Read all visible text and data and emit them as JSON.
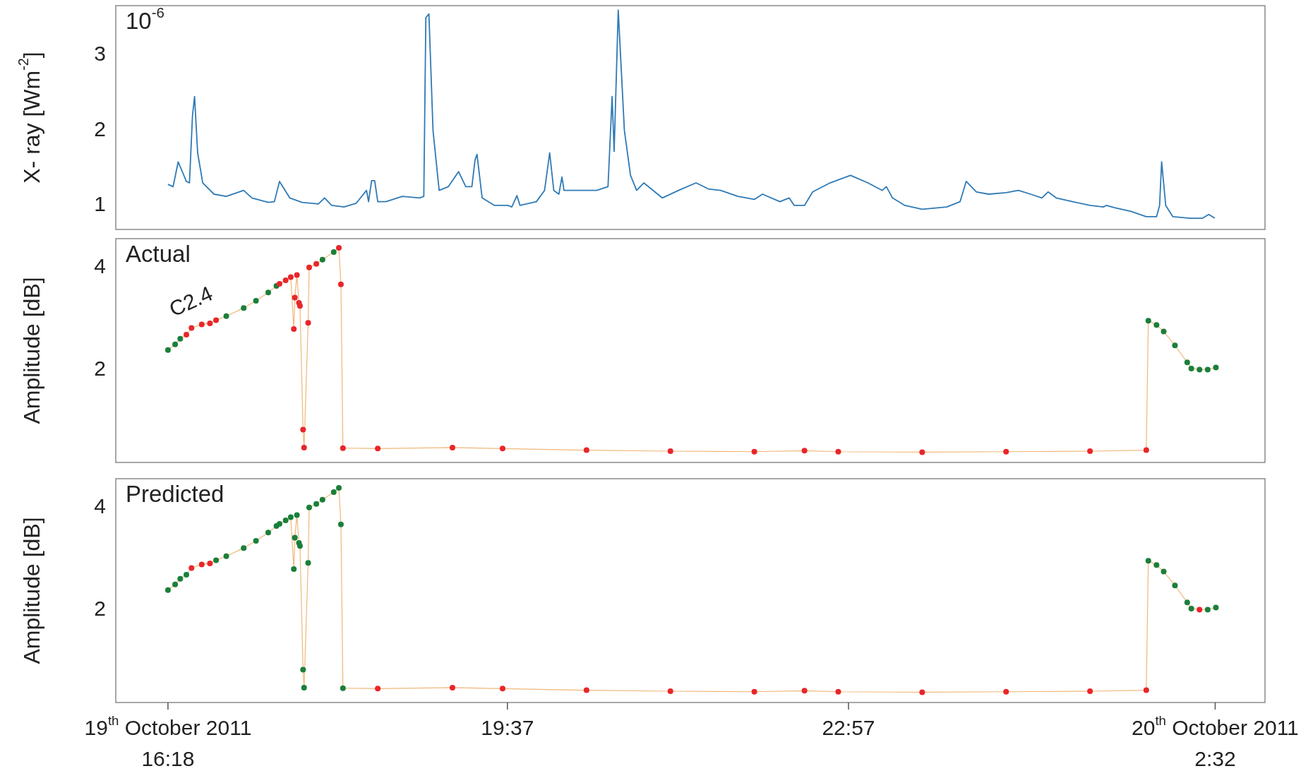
{
  "chart_data": [
    {
      "type": "line",
      "ylabel": "X- ray [Wm$^{-2}$]",
      "annotations": [
        "10$^{-6}$"
      ],
      "xlim": [
        15.79,
        27.02
      ],
      "ylim": [
        0.68,
        3.66
      ],
      "yticks": [
        1,
        2,
        3
      ],
      "tick_labels": "y",
      "grid": false,
      "marker": "none",
      "line_style": "solid",
      "x": [
        16.3,
        16.35,
        16.4,
        16.48,
        16.51,
        16.54,
        16.56,
        16.59,
        16.64,
        16.75,
        16.87,
        17.04,
        17.12,
        17.28,
        17.34,
        17.39,
        17.49,
        17.61,
        17.77,
        17.83,
        17.9,
        18.02,
        18.14,
        18.24,
        18.26,
        18.29,
        18.32,
        18.35,
        18.43,
        18.59,
        18.76,
        18.8,
        18.82,
        18.85,
        18.89,
        18.95,
        19.04,
        19.14,
        19.21,
        19.27,
        19.3,
        19.32,
        19.37,
        19.49,
        19.62,
        19.66,
        19.71,
        19.74,
        19.9,
        19.98,
        20.03,
        20.07,
        20.12,
        20.15,
        20.17,
        20.31,
        20.39,
        20.49,
        20.6,
        20.64,
        20.66,
        20.7,
        20.76,
        20.82,
        20.88,
        20.95,
        21.13,
        21.29,
        21.46,
        21.58,
        21.7,
        21.87,
        22.03,
        22.11,
        22.28,
        22.37,
        22.42,
        22.52,
        22.6,
        22.77,
        22.97,
        23.14,
        23.28,
        23.32,
        23.38,
        23.5,
        23.67,
        23.91,
        24.04,
        24.1,
        24.2,
        24.32,
        24.49,
        24.61,
        24.73,
        24.84,
        24.9,
        24.98,
        25.14,
        25.31,
        25.44,
        25.47,
        25.55,
        25.71,
        25.86,
        25.96,
        25.99,
        26.01,
        26.05,
        26.12,
        26.29,
        26.41,
        26.47,
        26.53
      ],
      "series": [
        {
          "color": "#2f7ab5",
          "values": [
            1.28,
            1.25,
            1.58,
            1.32,
            1.3,
            2.2,
            2.45,
            1.7,
            1.3,
            1.15,
            1.12,
            1.2,
            1.1,
            1.04,
            1.05,
            1.32,
            1.1,
            1.04,
            1.02,
            1.1,
            1.0,
            0.98,
            1.03,
            1.2,
            1.05,
            1.33,
            1.33,
            1.05,
            1.05,
            1.12,
            1.1,
            1.12,
            3.5,
            3.55,
            2.0,
            1.2,
            1.25,
            1.45,
            1.25,
            1.25,
            1.6,
            1.68,
            1.1,
            1.0,
            1.0,
            0.98,
            1.13,
            1.0,
            1.05,
            1.2,
            1.7,
            1.2,
            1.15,
            1.38,
            1.2,
            1.2,
            1.2,
            1.2,
            1.25,
            2.45,
            1.72,
            3.6,
            2.0,
            1.4,
            1.2,
            1.3,
            1.1,
            1.2,
            1.3,
            1.22,
            1.2,
            1.12,
            1.08,
            1.15,
            1.05,
            1.1,
            1.0,
            1.0,
            1.18,
            1.3,
            1.4,
            1.3,
            1.2,
            1.25,
            1.1,
            1.0,
            0.95,
            0.98,
            1.05,
            1.32,
            1.18,
            1.15,
            1.17,
            1.2,
            1.15,
            1.1,
            1.18,
            1.1,
            1.05,
            1.0,
            0.98,
            1.0,
            0.97,
            0.92,
            0.85,
            0.85,
            1.0,
            1.58,
            1.0,
            0.85,
            0.83,
            0.83,
            0.88,
            0.83
          ]
        }
      ]
    },
    {
      "type": "line",
      "ylabel": "Amplitude [dB]",
      "annotations": [
        "Actual",
        {
          "text": "C2.4",
          "x": 16.53,
          "y": 2.82
        }
      ],
      "xlim": [
        15.79,
        27.02
      ],
      "ylim": [
        0.2,
        4.56
      ],
      "yticks": [
        2,
        4
      ],
      "tick_labels": "y",
      "grid": false,
      "marker": "circle",
      "line_style": "solid",
      "x": [
        16.3,
        16.37,
        16.42,
        16.48,
        16.53,
        16.63,
        16.71,
        16.77,
        16.87,
        17.04,
        17.16,
        17.28,
        17.36,
        17.39,
        17.45,
        17.5,
        17.53,
        17.54,
        17.56,
        17.58,
        17.59,
        17.62,
        17.63,
        17.67,
        17.68,
        17.75,
        17.81,
        17.92,
        17.97,
        17.99,
        18.01,
        18.35,
        19.08,
        19.57,
        20.39,
        21.21,
        22.03,
        22.52,
        22.85,
        23.67,
        24.49,
        25.31,
        25.86,
        25.88,
        25.96,
        26.03,
        26.14,
        26.26,
        26.3,
        26.38,
        26.46,
        26.54
      ],
      "series": [
        {
          "color": "#f0b778",
          "values": [
            2.39,
            2.5,
            2.61,
            2.69,
            2.82,
            2.89,
            2.91,
            2.97,
            3.05,
            3.21,
            3.35,
            3.51,
            3.64,
            3.68,
            3.75,
            3.81,
            2.8,
            3.41,
            3.85,
            3.31,
            3.25,
            0.84,
            0.49,
            2.92,
            4.0,
            4.07,
            4.15,
            4.3,
            4.38,
            3.67,
            0.48,
            0.47,
            0.49,
            0.47,
            0.44,
            0.42,
            0.41,
            0.43,
            0.41,
            0.4,
            0.41,
            0.42,
            0.44,
            2.96,
            2.88,
            2.75,
            2.48,
            2.15,
            2.03,
            2.01,
            2.01,
            2.05
          ],
          "colors": [
            "#1a7f3a",
            "#1a7f3a",
            "#1a7f3a",
            "#e8262a",
            "#e8262a",
            "#e8262a",
            "#e8262a",
            "#e8262a",
            "#1a7f3a",
            "#1a7f3a",
            "#1a7f3a",
            "#1a7f3a",
            "#1a7f3a",
            "#e8262a",
            "#e8262a",
            "#e8262a",
            "#e8262a",
            "#e8262a",
            "#e8262a",
            "#e8262a",
            "#e8262a",
            "#e8262a",
            "#e8262a",
            "#e8262a",
            "#e8262a",
            "#e8262a",
            "#1a7f3a",
            "#1a7f3a",
            "#e8262a",
            "#e8262a",
            "#e8262a",
            "#e8262a",
            "#e8262a",
            "#e8262a",
            "#e8262a",
            "#e8262a",
            "#e8262a",
            "#e8262a",
            "#e8262a",
            "#e8262a",
            "#e8262a",
            "#e8262a",
            "#e8262a",
            "#1a7f3a",
            "#1a7f3a",
            "#1a7f3a",
            "#1a7f3a",
            "#1a7f3a",
            "#1a7f3a",
            "#1a7f3a",
            "#1a7f3a",
            "#1a7f3a"
          ]
        }
      ]
    },
    {
      "type": "line",
      "ylabel": "Amplitude [dB]",
      "annotations": [
        "Predicted"
      ],
      "xlim": [
        15.79,
        27.02
      ],
      "ylim": [
        0.2,
        4.56
      ],
      "yticks": [
        2,
        4
      ],
      "xticks": [
        {
          "value": 16.3,
          "label": "19$^{th}$ October 2011\n16:18"
        },
        {
          "value": 19.617,
          "label": "19:37"
        },
        {
          "value": 22.95,
          "label": "22:57"
        },
        {
          "value": 26.533,
          "label": "20$^{th}$ October 2011\n2:32"
        }
      ],
      "grid": false,
      "marker": "circle",
      "line_style": "solid",
      "x": [
        16.3,
        16.37,
        16.42,
        16.48,
        16.53,
        16.63,
        16.71,
        16.77,
        16.87,
        17.04,
        17.16,
        17.28,
        17.36,
        17.39,
        17.45,
        17.5,
        17.53,
        17.54,
        17.56,
        17.58,
        17.59,
        17.62,
        17.63,
        17.67,
        17.68,
        17.75,
        17.81,
        17.92,
        17.97,
        17.99,
        18.01,
        18.35,
        19.08,
        19.57,
        20.39,
        21.21,
        22.03,
        22.52,
        22.85,
        23.67,
        24.49,
        25.31,
        25.86,
        25.88,
        25.96,
        26.03,
        26.14,
        26.26,
        26.3,
        26.38,
        26.46,
        26.54
      ],
      "series": [
        {
          "color": "#f0b778",
          "values": [
            2.39,
            2.5,
            2.61,
            2.69,
            2.82,
            2.89,
            2.91,
            2.97,
            3.05,
            3.21,
            3.35,
            3.51,
            3.64,
            3.68,
            3.75,
            3.81,
            2.8,
            3.41,
            3.85,
            3.31,
            3.25,
            0.84,
            0.49,
            2.92,
            4.0,
            4.07,
            4.15,
            4.3,
            4.38,
            3.67,
            0.48,
            0.47,
            0.49,
            0.47,
            0.44,
            0.42,
            0.41,
            0.43,
            0.41,
            0.4,
            0.41,
            0.42,
            0.44,
            2.96,
            2.88,
            2.75,
            2.48,
            2.15,
            2.03,
            2.01,
            2.01,
            2.05
          ],
          "colors": [
            "#1a7f3a",
            "#1a7f3a",
            "#1a7f3a",
            "#1a7f3a",
            "#e8262a",
            "#e8262a",
            "#e8262a",
            "#1a7f3a",
            "#1a7f3a",
            "#1a7f3a",
            "#1a7f3a",
            "#1a7f3a",
            "#1a7f3a",
            "#1a7f3a",
            "#1a7f3a",
            "#1a7f3a",
            "#1a7f3a",
            "#1a7f3a",
            "#1a7f3a",
            "#1a7f3a",
            "#1a7f3a",
            "#1a7f3a",
            "#1a7f3a",
            "#1a7f3a",
            "#1a7f3a",
            "#1a7f3a",
            "#1a7f3a",
            "#1a7f3a",
            "#1a7f3a",
            "#1a7f3a",
            "#1a7f3a",
            "#e8262a",
            "#e8262a",
            "#e8262a",
            "#e8262a",
            "#e8262a",
            "#e8262a",
            "#e8262a",
            "#e8262a",
            "#e8262a",
            "#e8262a",
            "#e8262a",
            "#e8262a",
            "#1a7f3a",
            "#1a7f3a",
            "#1a7f3a",
            "#1a7f3a",
            "#1a7f3a",
            "#1a7f3a",
            "#e8262a",
            "#1a7f3a",
            "#1a7f3a"
          ]
        }
      ]
    }
  ]
}
